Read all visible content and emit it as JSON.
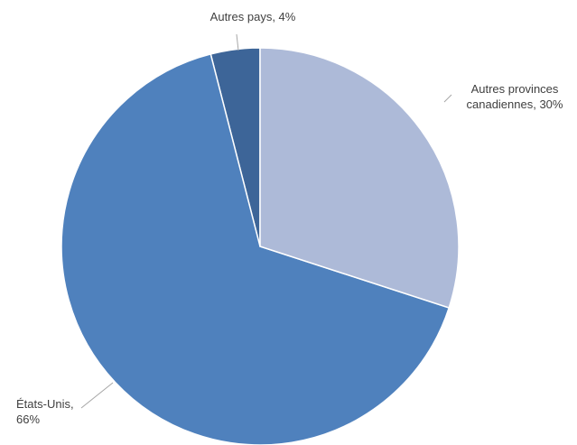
{
  "chart_data": {
    "type": "pie",
    "labels": [
      "Autres provinces canadiennes, 30%",
      "États-Unis, 66%",
      "Autres pays, 4%"
    ],
    "values": [
      30,
      66,
      4
    ],
    "colors": [
      "#adbad8",
      "#4f81bd",
      "#3d6598"
    ],
    "start_angle": 90,
    "direction": "clockwise"
  }
}
